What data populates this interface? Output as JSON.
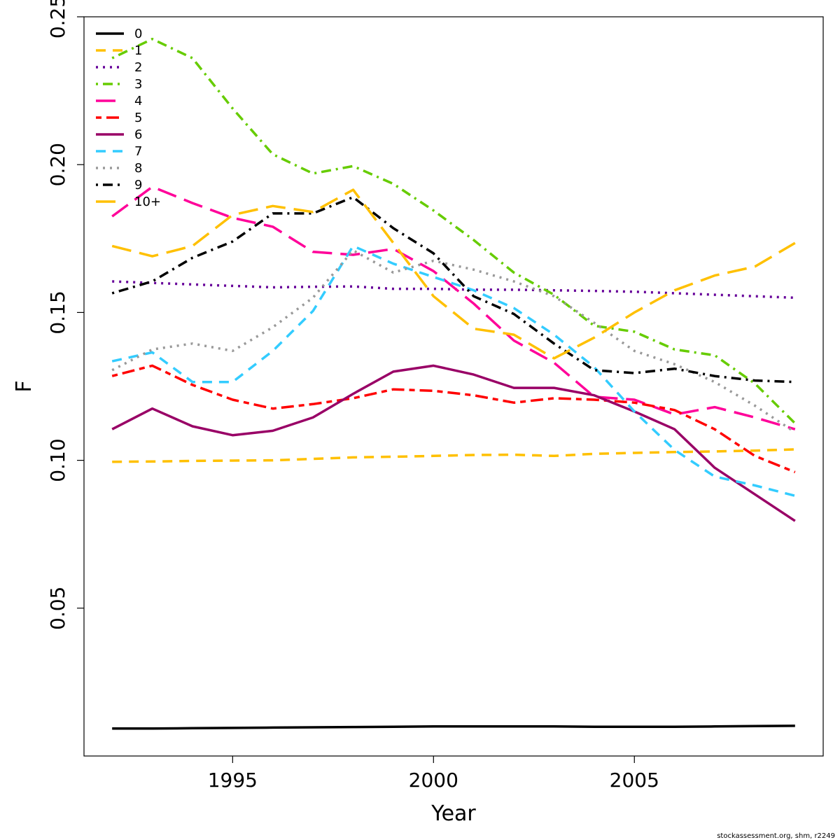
{
  "chart_data": {
    "type": "line",
    "title": "",
    "xlabel": "Year",
    "ylabel": "F",
    "xlim": [
      1991.3,
      2009.7
    ],
    "ylim": [
      0.0,
      0.25
    ],
    "x_ticks": [
      {
        "value": 1995,
        "label": "1995"
      },
      {
        "value": 2000,
        "label": "2000"
      },
      {
        "value": 2005,
        "label": "2005"
      }
    ],
    "y_ticks": [
      {
        "value": 0.05,
        "label": "0.05"
      },
      {
        "value": 0.1,
        "label": "0.10"
      },
      {
        "value": 0.15,
        "label": "0.15"
      },
      {
        "value": 0.2,
        "label": "0.20"
      },
      {
        "value": 0.25,
        "label": "0.25"
      }
    ],
    "grid": false,
    "legend_position": "top-left",
    "x": [
      1992,
      1993,
      1994,
      1995,
      1996,
      1997,
      1998,
      1999,
      2000,
      2001,
      2002,
      2003,
      2004,
      2005,
      2006,
      2007,
      2008,
      2009
    ],
    "series": [
      {
        "name": "0",
        "color": "#000000",
        "dash": "solid",
        "values": [
          0.0093,
          0.0093,
          0.0094,
          0.0095,
          0.0096,
          0.0097,
          0.0098,
          0.0099,
          0.01,
          0.01,
          0.01,
          0.01,
          0.0099,
          0.0099,
          0.0099,
          0.01,
          0.0101,
          0.0102
        ]
      },
      {
        "name": "1",
        "color": "#FFC000",
        "dash": "dashed",
        "values": [
          0.0995,
          0.0996,
          0.0998,
          0.0999,
          0.1,
          0.1005,
          0.101,
          0.1012,
          0.1015,
          0.1018,
          0.1019,
          0.1015,
          0.1022,
          0.1025,
          0.1028,
          0.103,
          0.1033,
          0.1037
        ]
      },
      {
        "name": "2",
        "color": "#660099",
        "dash": "dotted",
        "values": [
          0.1605,
          0.16,
          0.1595,
          0.159,
          0.1585,
          0.1587,
          0.1588,
          0.158,
          0.158,
          0.1577,
          0.1577,
          0.1575,
          0.1573,
          0.157,
          0.1565,
          0.156,
          0.1555,
          0.155
        ]
      },
      {
        "name": "3",
        "color": "#66CC00",
        "dash": "dotdash",
        "values": [
          0.236,
          0.2425,
          0.236,
          0.219,
          0.2035,
          0.197,
          0.1995,
          0.1935,
          0.1845,
          0.1745,
          0.1635,
          0.156,
          0.1455,
          0.1435,
          0.1375,
          0.1355,
          0.126,
          0.1125
        ]
      },
      {
        "name": "4",
        "color": "#FF0099",
        "dash": "longdash",
        "values": [
          0.1825,
          0.1925,
          0.187,
          0.182,
          0.179,
          0.1705,
          0.1695,
          0.1715,
          0.164,
          0.153,
          0.1405,
          0.133,
          0.1215,
          0.1205,
          0.1155,
          0.118,
          0.1145,
          0.1105
        ]
      },
      {
        "name": "5",
        "color": "#FF0000",
        "dash": "twodash",
        "values": [
          0.1285,
          0.132,
          0.1255,
          0.1205,
          0.1175,
          0.119,
          0.121,
          0.124,
          0.1235,
          0.122,
          0.1195,
          0.121,
          0.1205,
          0.1195,
          0.117,
          0.1105,
          0.1015,
          0.096
        ]
      },
      {
        "name": "6",
        "color": "#990066",
        "dash": "solid",
        "values": [
          0.1105,
          0.1175,
          0.1115,
          0.1085,
          0.11,
          0.1145,
          0.1225,
          0.13,
          0.132,
          0.129,
          0.1245,
          0.1245,
          0.122,
          0.1165,
          0.1105,
          0.0975,
          0.0885,
          0.0795
        ]
      },
      {
        "name": "7",
        "color": "#33CCFF",
        "dash": "dashed",
        "values": [
          0.1335,
          0.1365,
          0.1265,
          0.1265,
          0.137,
          0.1505,
          0.1725,
          0.1665,
          0.162,
          0.1575,
          0.1515,
          0.1425,
          0.1315,
          0.1165,
          0.1035,
          0.0945,
          0.0915,
          0.088
        ]
      },
      {
        "name": "8",
        "color": "#999999",
        "dash": "dotted",
        "values": [
          0.1305,
          0.1375,
          0.1395,
          0.137,
          0.145,
          0.155,
          0.171,
          0.1635,
          0.1675,
          0.1645,
          0.1605,
          0.1555,
          0.1465,
          0.137,
          0.1325,
          0.1265,
          0.1185,
          0.1095
        ]
      },
      {
        "name": "9",
        "color": "#000000",
        "dash": "dotdash",
        "values": [
          0.1565,
          0.1605,
          0.1685,
          0.174,
          0.1835,
          0.1835,
          0.189,
          0.1785,
          0.17,
          0.1555,
          0.1495,
          0.1395,
          0.1305,
          0.1295,
          0.131,
          0.1285,
          0.127,
          0.1265
        ]
      },
      {
        "name": "10+",
        "color": "#FFC000",
        "dash": "longdash",
        "values": [
          0.1725,
          0.169,
          0.1725,
          0.183,
          0.186,
          0.184,
          0.1915,
          0.1735,
          0.1555,
          0.1445,
          0.1425,
          0.1345,
          0.1415,
          0.15,
          0.1575,
          0.1625,
          0.1655,
          0.1735
        ]
      }
    ]
  },
  "footer": {
    "credit": "stockassessment.org, shm, r2249"
  }
}
